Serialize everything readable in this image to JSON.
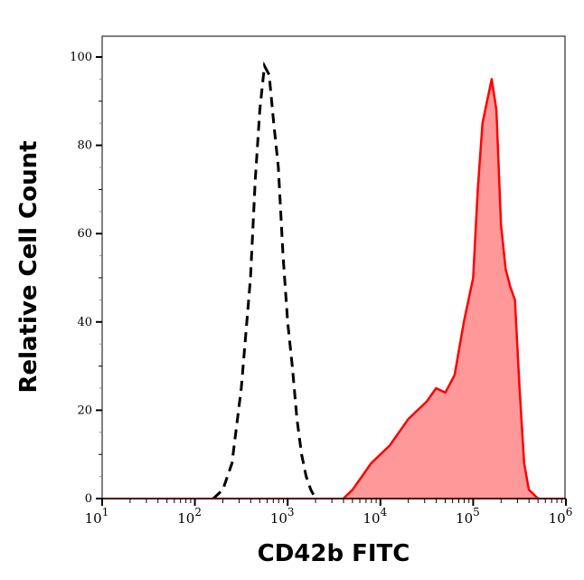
{
  "chart_data": {
    "type": "area",
    "title": "",
    "xlabel": "CD42b FITC",
    "ylabel": "Relative Cell Count",
    "x_scale": "log",
    "xlim": [
      10,
      1000000
    ],
    "ylim": [
      0,
      100
    ],
    "grid": false,
    "x_ticks": [
      {
        "base": "10",
        "exp": "1",
        "value": 10
      },
      {
        "base": "10",
        "exp": "2",
        "value": 100
      },
      {
        "base": "10",
        "exp": "3",
        "value": 1000
      },
      {
        "base": "10",
        "exp": "4",
        "value": 10000
      },
      {
        "base": "10",
        "exp": "5",
        "value": 100000
      },
      {
        "base": "10",
        "exp": "6",
        "value": 1000000
      }
    ],
    "y_ticks": [
      "0",
      "20",
      "40",
      "60",
      "80",
      "100"
    ],
    "series": [
      {
        "style": "dashed-line",
        "color": "#000000",
        "x": [
          158,
          200,
          251,
          316,
          398,
          447,
          501,
          562,
          631,
          708,
          794,
          891,
          1000,
          1122,
          1259,
          1413,
          1585,
          1778,
          1995
        ],
        "y": [
          0,
          2,
          8,
          25,
          50,
          72,
          88,
          98,
          96,
          85,
          75,
          55,
          40,
          30,
          18,
          10,
          5,
          2,
          0
        ]
      },
      {
        "style": "filled-area",
        "color": "#ff0000",
        "fill": "#ff9999",
        "x": [
          3981,
          5012,
          6310,
          7943,
          10000,
          12589,
          15849,
          19953,
          25119,
          31623,
          39811,
          50119,
          63096,
          79433,
          100000,
          112202,
          125893,
          141254,
          158489,
          177828,
          199526,
          223872,
          251189,
          281838,
          316228,
          354813,
          398107,
          501187
        ],
        "y": [
          0,
          2,
          5,
          8,
          10,
          12,
          15,
          18,
          20,
          22,
          25,
          24,
          28,
          40,
          50,
          70,
          85,
          90,
          95,
          88,
          62,
          52,
          48,
          45,
          25,
          8,
          2,
          0
        ]
      }
    ]
  }
}
